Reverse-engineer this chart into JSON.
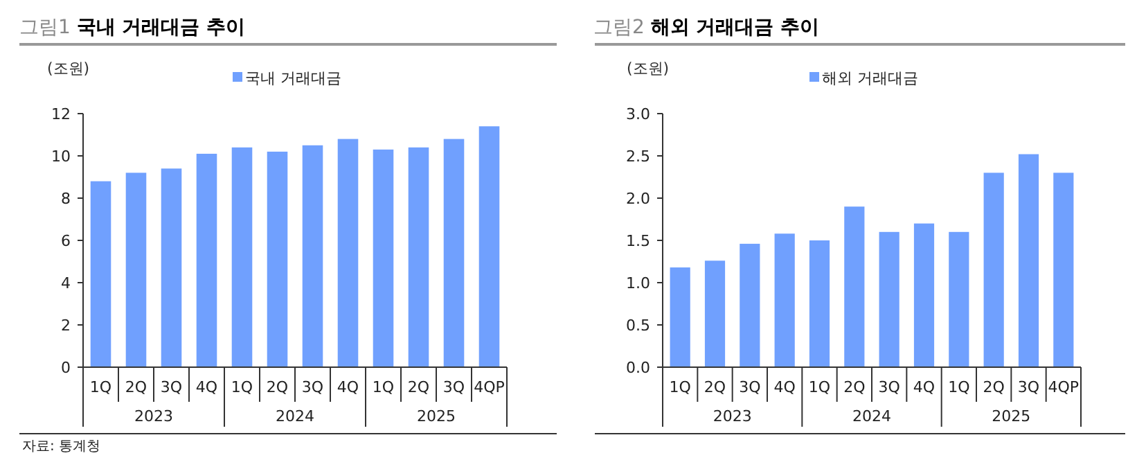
{
  "chart_data": [
    {
      "type": "bar",
      "title": "그림1 **국내 거래대금 추이**",
      "ylabel": "(조원)",
      "legend": "top",
      "categories": [
        "1Q",
        "2Q",
        "3Q",
        "4Q",
        "1Q",
        "2Q",
        "3Q",
        "4Q",
        "1Q",
        "2Q",
        "3Q",
        "4QP"
      ],
      "series": [
        {
          "name": "국내 거래대금",
          "color": "#70a0fe",
          "values": [
            8.8,
            9.2,
            9.4,
            10.1,
            10.4,
            10.2,
            10.5,
            10.8,
            10.3,
            10.4,
            10.8,
            11.4
          ]
        }
      ],
      "ylim": [
        0,
        12
      ],
      "yticks": [
        0,
        2,
        4,
        6,
        8,
        10,
        12
      ],
      "annotations": [
        "2023",
        "2024",
        "2025",
        "자료: 통계청"
      ]
    },
    {
      "type": "bar",
      "title": "그림2 **해외 거래대금 추이**",
      "ylabel": "(조원)",
      "legend": "top",
      "categories": [
        "1Q",
        "2Q",
        "3Q",
        "4Q",
        "1Q",
        "2Q",
        "3Q",
        "4Q",
        "1Q",
        "2Q",
        "3Q",
        "4QP"
      ],
      "series": [
        {
          "name": "해외 거래대금",
          "color": "#70a0fe",
          "values": [
            1.18,
            1.26,
            1.46,
            1.58,
            1.5,
            1.9,
            1.6,
            1.7,
            1.6,
            2.3,
            2.52,
            2.3
          ]
        }
      ],
      "ylim": [
        0,
        3
      ],
      "yticks": [
        {
          "value": 0,
          "label": "0.0"
        },
        {
          "value": 0.5,
          "label": "0.5"
        },
        {
          "value": 1,
          "label": "1.0"
        },
        {
          "value": 1.5,
          "label": "1.5"
        },
        {
          "value": 2,
          "label": "2.0"
        },
        {
          "value": 2.5,
          "label": "2.5"
        },
        {
          "value": 3,
          "label": "3.0"
        }
      ],
      "annotations": [
        "2023",
        "2024",
        "2025"
      ]
    }
  ]
}
